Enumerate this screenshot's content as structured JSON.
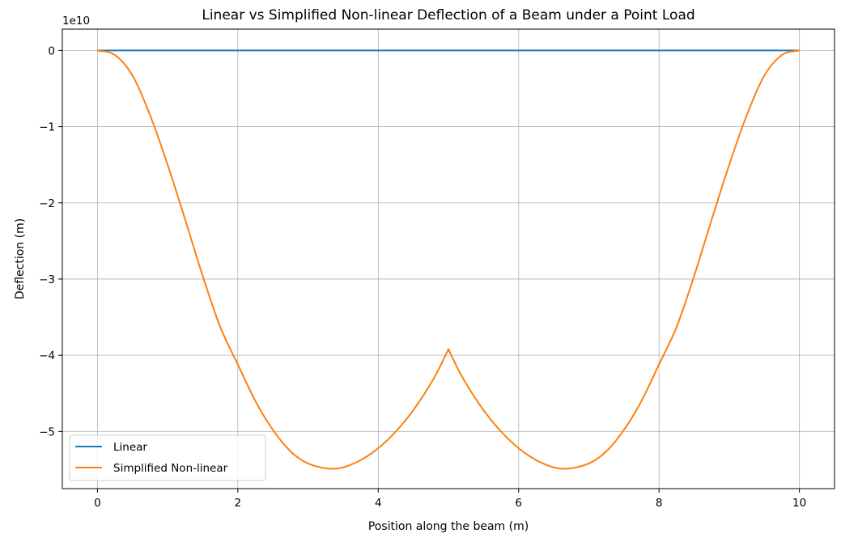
{
  "chart_data": {
    "type": "line",
    "title": "Linear vs Simplified Non-linear Deflection of a Beam under a Point Load",
    "xlabel": "Position along the beam (m)",
    "ylabel": "Deflection (m)",
    "y_offset_label": "1e10",
    "xlim": [
      -0.5,
      10.5
    ],
    "ylim": [
      -5.75,
      0.28
    ],
    "xticks": [
      0,
      2,
      4,
      6,
      8,
      10
    ],
    "xtick_labels": [
      "0",
      "2",
      "4",
      "6",
      "8",
      "10"
    ],
    "yticks": [
      0,
      -1,
      -2,
      -3,
      -4,
      -5
    ],
    "ytick_labels": [
      "0",
      "−1",
      "−2",
      "−3",
      "−4",
      "−5"
    ],
    "grid": true,
    "legend_position": "lower-left",
    "series": [
      {
        "name": "Linear",
        "color": "#1f77b4",
        "x": [
          0,
          10
        ],
        "y": [
          0,
          0
        ]
      },
      {
        "name": "Simplified Non-linear",
        "color": "#ff7f0e",
        "x": [
          0,
          0.25,
          0.5,
          0.75,
          1.0,
          1.25,
          1.5,
          1.75,
          2.0,
          2.25,
          2.5,
          2.75,
          3.0,
          3.33,
          3.6,
          3.9,
          4.2,
          4.5,
          4.8,
          5.0,
          5.2,
          5.5,
          5.8,
          6.1,
          6.4,
          6.67,
          7.0,
          7.25,
          7.5,
          7.75,
          8.0,
          8.25,
          8.5,
          8.75,
          9.0,
          9.25,
          9.5,
          9.75,
          10.0
        ],
        "y": [
          0,
          -0.06,
          -0.33,
          -0.85,
          -1.5,
          -2.22,
          -2.96,
          -3.63,
          -4.12,
          -4.6,
          -4.98,
          -5.26,
          -5.42,
          -5.49,
          -5.44,
          -5.29,
          -5.05,
          -4.72,
          -4.29,
          -3.92,
          -4.29,
          -4.72,
          -5.05,
          -5.29,
          -5.44,
          -5.49,
          -5.42,
          -5.26,
          -4.98,
          -4.6,
          -4.12,
          -3.63,
          -2.96,
          -2.22,
          -1.5,
          -0.85,
          -0.33,
          -0.06,
          0
        ]
      }
    ]
  }
}
